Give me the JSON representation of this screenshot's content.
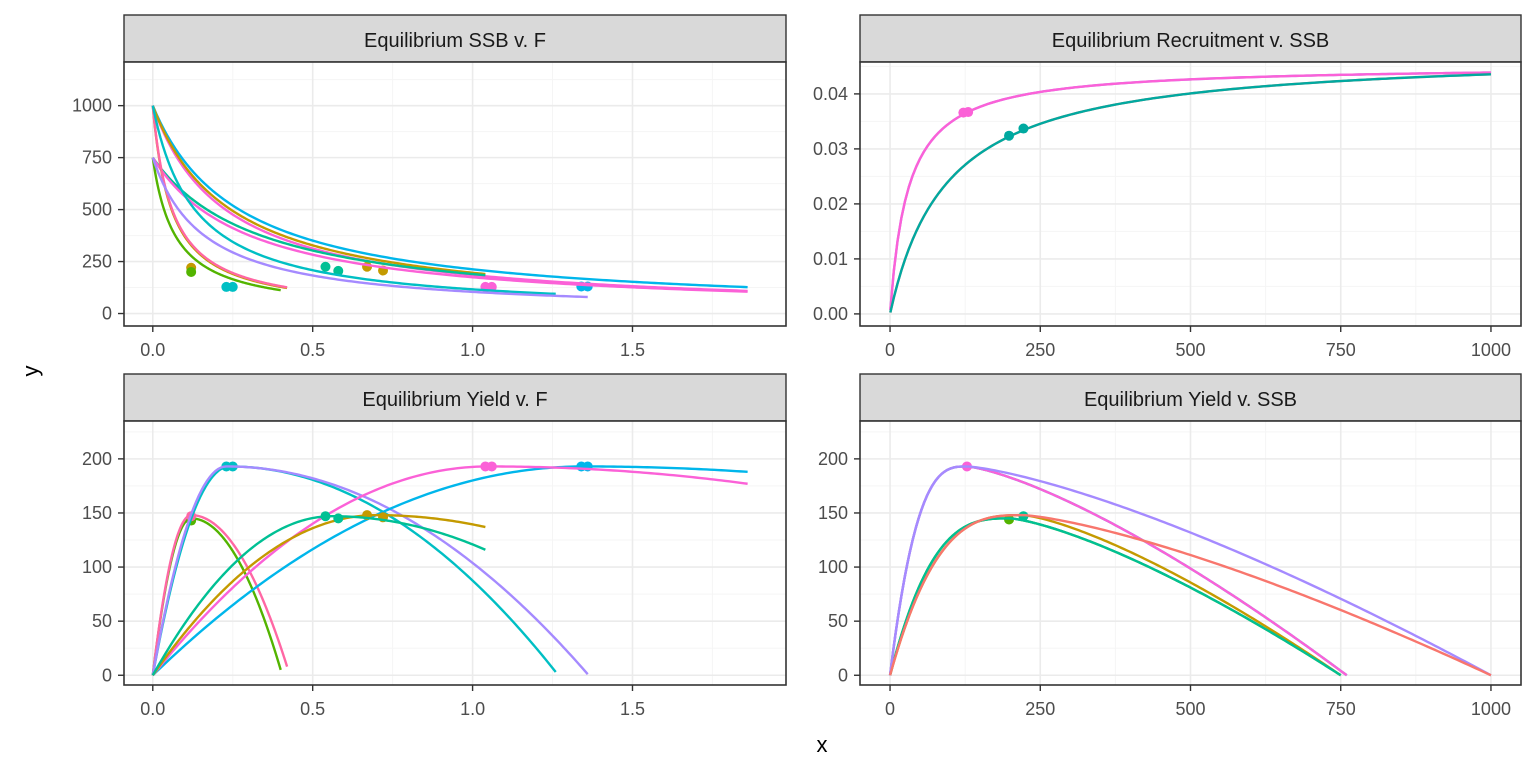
{
  "xlabel": "x",
  "ylabel": "y",
  "colors": {
    "strip_fill": "#d9d9d9",
    "panel_border": "#333333",
    "grid_major": "#ebebeb",
    "grid_minor": "#f5f5f5"
  },
  "series_colors": [
    "#F8766D",
    "#C49A00",
    "#53B400",
    "#00C094",
    "#00B6EB",
    "#A58AFF",
    "#FB61D7",
    "#00BFC4",
    "#FF67A4"
  ],
  "chart_data": [
    {
      "type": "line",
      "title": "Equilibrium SSB v. F",
      "xlim": [
        -0.09,
        1.98
      ],
      "ylim": [
        -60,
        1210
      ],
      "xticks": [
        0,
        0.5,
        1,
        1.5
      ],
      "xtick_labels": [
        "0.0",
        "0.5",
        "1.0",
        "1.5"
      ],
      "yticks": [
        0,
        250,
        500,
        750,
        1000
      ],
      "ytick_labels": [
        "0",
        "250",
        "500",
        "750",
        "1000"
      ],
      "series": [
        {
          "color": "#00B6EB",
          "type": "ssbf",
          "y0": 1000,
          "k": 3.7,
          "xmax": 1.86,
          "points": [
            [
              1.34,
              130
            ],
            [
              1.36,
              130
            ]
          ]
        },
        {
          "color": "#FB61D7",
          "type": "ssbf",
          "y0": 1000,
          "k": 4.4,
          "xmax": 1.86,
          "points": [
            [
              1.04,
              128
            ],
            [
              1.06,
              128
            ]
          ]
        },
        {
          "color": "#C49A00",
          "type": "ssbf",
          "y0": 1000,
          "k": 4.1,
          "xmax": 1.04,
          "points": [
            [
              0.67,
              225
            ],
            [
              0.72,
              207
            ]
          ]
        },
        {
          "color": "#00C094",
          "type": "ssbf",
          "y0": 750,
          "k": 2.95,
          "xmax": 1.04,
          "points": [
            [
              0.54,
              225
            ],
            [
              0.58,
              205
            ]
          ]
        },
        {
          "color": "#FB61D7",
          "type": "ssbf",
          "y0": 750,
          "k": 3.3,
          "xmax": 1.86,
          "points": []
        },
        {
          "color": "#C49A00",
          "type": "ssbf",
          "y0": 1000,
          "k": 17,
          "xmax": 0.42,
          "points": [
            [
              0.12,
              220
            ]
          ]
        },
        {
          "color": "#53B400",
          "type": "ssbf",
          "y0": 750,
          "k": 14.2,
          "xmax": 0.4,
          "points": [
            [
              0.12,
              200
            ]
          ]
        },
        {
          "color": "#FF67A4",
          "type": "ssbf",
          "y0": 1000,
          "k": 16.5,
          "xmax": 0.42,
          "points": []
        },
        {
          "color": "#00BFC4",
          "type": "ssbf",
          "y0": 1000,
          "k": 7.6,
          "xmax": 1.26,
          "points": [
            [
              0.23,
              128
            ],
            [
              0.25,
              128
            ]
          ]
        },
        {
          "color": "#A58AFF",
          "type": "ssbf",
          "y0": 750,
          "k": 6.2,
          "xmax": 1.36,
          "points": []
        }
      ]
    },
    {
      "type": "line",
      "title": "Equilibrium Recruitment v. SSB",
      "xlim": [
        -50,
        1050
      ],
      "ylim": [
        -0.0022,
        0.0458
      ],
      "xticks": [
        0,
        250,
        500,
        750,
        1000
      ],
      "xtick_labels": [
        "0",
        "250",
        "500",
        "750",
        "1000"
      ],
      "yticks": [
        0,
        0.01,
        0.02,
        0.03,
        0.04
      ],
      "ytick_labels": [
        "0.00",
        "0.01",
        "0.02",
        "0.03",
        "0.04"
      ],
      "series": [
        {
          "color": "#A58AFF",
          "type": "bh",
          "a": 0.0452,
          "b": 30,
          "xmax": 1000,
          "points": []
        },
        {
          "color": "#FB61D7",
          "type": "bh",
          "a": 0.0452,
          "b": 30,
          "xmax": 1000,
          "points": [
            [
              122,
              0.0366
            ],
            [
              130,
              0.0367
            ]
          ]
        },
        {
          "color": "#F8766D",
          "type": "bh",
          "a": 0.0477,
          "b": 95,
          "xmax": 1000,
          "points": []
        },
        {
          "color": "#00A9A0",
          "type": "bh",
          "a": 0.0477,
          "b": 95,
          "xmax": 1000,
          "points": [
            [
              198,
              0.0324
            ],
            [
              222,
              0.0337
            ]
          ]
        }
      ]
    },
    {
      "type": "line",
      "title": "Equilibrium Yield v. F",
      "xlim": [
        -0.09,
        1.98
      ],
      "ylim": [
        -9,
        235
      ],
      "xticks": [
        0,
        0.5,
        1,
        1.5
      ],
      "xtick_labels": [
        "0.0",
        "0.5",
        "1.0",
        "1.5"
      ],
      "yticks": [
        0,
        50,
        100,
        150,
        200
      ],
      "ytick_labels": [
        "0",
        "50",
        "100",
        "150",
        "200"
      ],
      "series": [
        {
          "color": "#53B400",
          "type": "quad",
          "peak_x": 0.12,
          "peak_y": 145,
          "xmax": 0.4,
          "end_y": 5,
          "points": [
            [
              0.12,
              143
            ]
          ]
        },
        {
          "color": "#FF67A4",
          "type": "quad",
          "peak_x": 0.12,
          "peak_y": 148,
          "xmax": 0.42,
          "end_y": 8,
          "points": [
            [
              0.12,
              147
            ]
          ]
        },
        {
          "color": "#00BFC4",
          "type": "quad",
          "peak_x": 0.24,
          "peak_y": 193,
          "xmax": 1.26,
          "end_y": 3,
          "points": [
            [
              0.23,
              193
            ],
            [
              0.25,
              193
            ]
          ]
        },
        {
          "color": "#A58AFF",
          "type": "quad",
          "peak_x": 0.23,
          "peak_y": 193,
          "xmax": 1.36,
          "end_y": 1,
          "points": []
        },
        {
          "color": "#00B6EB",
          "type": "quad",
          "peak_x": 1.35,
          "peak_y": 193,
          "xmax": 1.86,
          "end_y": 188,
          "points": [
            [
              1.34,
              193
            ],
            [
              1.36,
              193
            ]
          ]
        },
        {
          "color": "#FB61D7",
          "type": "quad",
          "peak_x": 1.05,
          "peak_y": 193,
          "xmax": 1.86,
          "end_y": 177,
          "points": [
            [
              1.04,
              193
            ],
            [
              1.06,
              193
            ]
          ]
        },
        {
          "color": "#C49A00",
          "type": "quad",
          "peak_x": 0.7,
          "peak_y": 148,
          "xmax": 1.04,
          "end_y": 137,
          "points": [
            [
              0.67,
              148
            ],
            [
              0.72,
              146
            ]
          ]
        },
        {
          "color": "#00C094",
          "type": "quad",
          "peak_x": 0.56,
          "peak_y": 147,
          "xmax": 1.04,
          "end_y": 116,
          "points": [
            [
              0.54,
              147
            ],
            [
              0.58,
              145
            ]
          ]
        }
      ]
    },
    {
      "type": "line",
      "title": "Equilibrium Yield v. SSB",
      "xlim": [
        -50,
        1050
      ],
      "ylim": [
        -9,
        235
      ],
      "xticks": [
        0,
        250,
        500,
        750,
        1000
      ],
      "xtick_labels": [
        "0",
        "250",
        "500",
        "750",
        "1000"
      ],
      "yticks": [
        0,
        50,
        100,
        150,
        200
      ],
      "ytick_labels": [
        "0",
        "50",
        "100",
        "150",
        "200"
      ],
      "series": [
        {
          "color": "#53B400",
          "type": "hump",
          "peak_x": 200,
          "peak_y": 145,
          "xmax": 750,
          "points": [
            [
              198,
              144
            ]
          ]
        },
        {
          "color": "#C49A00",
          "type": "hump",
          "peak_x": 222,
          "peak_y": 148,
          "xmax": 750,
          "points": []
        },
        {
          "color": "#00C094",
          "type": "hump",
          "peak_x": 200,
          "peak_y": 145,
          "xmax": 750,
          "points": [
            [
              222,
              147
            ]
          ]
        },
        {
          "color": "#00B6EB",
          "type": "hump",
          "peak_x": 128,
          "peak_y": 193,
          "xmax": 760,
          "points": []
        },
        {
          "color": "#FB61D7",
          "type": "hump",
          "peak_x": 128,
          "peak_y": 193,
          "xmax": 760,
          "points": [
            [
              128,
              193
            ]
          ]
        },
        {
          "color": "#A58AFF",
          "type": "hump",
          "peak_x": 128,
          "peak_y": 193,
          "xmax": 1000,
          "points": []
        },
        {
          "color": "#F8766D",
          "type": "hump",
          "peak_x": 222,
          "peak_y": 148,
          "xmax": 1000,
          "points": []
        }
      ]
    }
  ]
}
